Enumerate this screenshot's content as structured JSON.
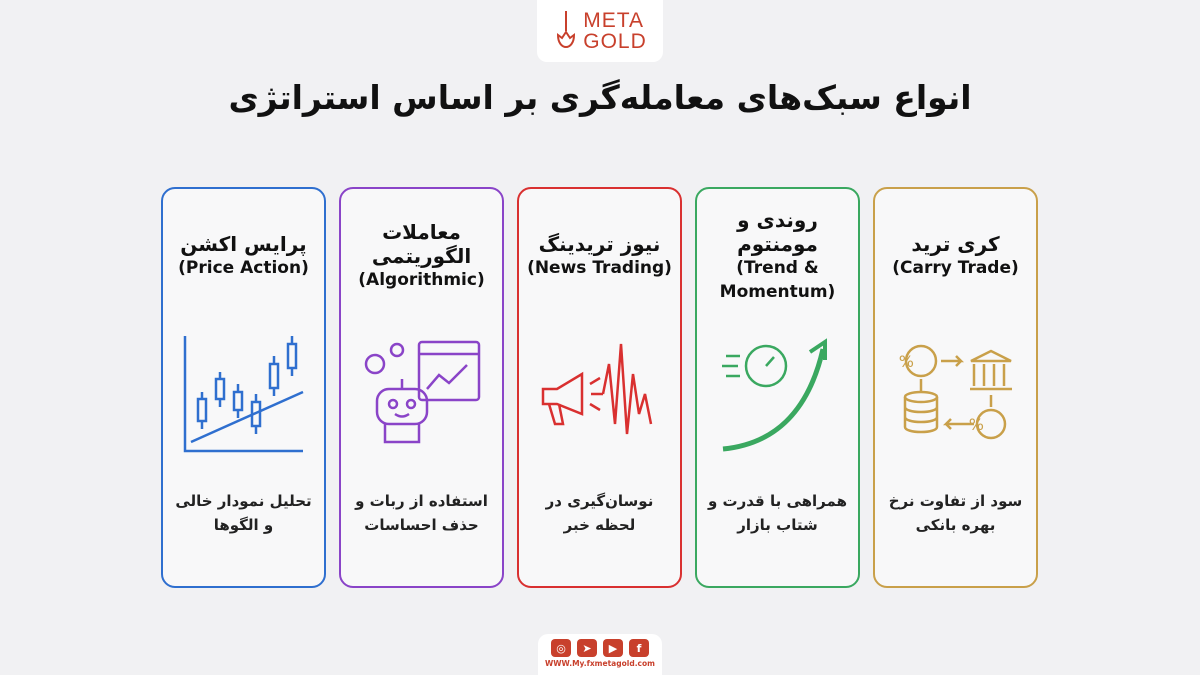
{
  "logo": {
    "line1": "META",
    "line2": "GOLD"
  },
  "title": "انواع سبک‌های معامله‌گری بر اساس استراتژی",
  "colors": {
    "brand": "#c8402c",
    "blue": "#2f6fcf",
    "purple": "#8a44c8",
    "red": "#d93030",
    "green": "#3aa860",
    "gold": "#c9a04a"
  },
  "cards": [
    {
      "fa": "کری ترید",
      "en": "(Carry Trade)",
      "desc": "سود از تفاوت نرخ بهره بانکی",
      "icon": "interest-rate-bank-icon"
    },
    {
      "fa": "روندی و مومنتوم",
      "en": "(Trend & Momentum)",
      "desc": "همراهی با قدرت و شتاب بازار",
      "icon": "speedometer-arrow-icon"
    },
    {
      "fa": "نیوز تریدینگ",
      "en": "(News Trading)",
      "desc": "نوسان‌گیری در لحظه خبر",
      "icon": "megaphone-volatility-icon"
    },
    {
      "fa": "معاملات الگوریتمی",
      "en": "(Algorithmic)",
      "desc": "استفاده از ربات و حذف احساسات",
      "icon": "robot-chart-icon"
    },
    {
      "fa": "پرایس اکشن",
      "en": "(Price Action)",
      "desc": "تحلیل نمودار خالی و الگوها",
      "icon": "candlestick-icon"
    }
  ],
  "footer": {
    "social": [
      "instagram",
      "telegram",
      "youtube",
      "facebook"
    ],
    "url": "WWW.My.fxmetagold.com"
  }
}
